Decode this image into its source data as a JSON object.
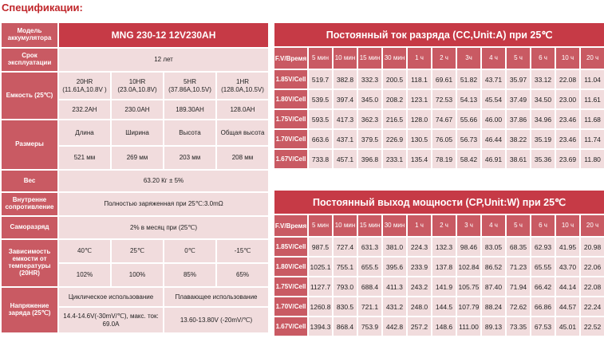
{
  "page_title": "Спецификации:",
  "spec": {
    "model_label": "Модель аккумулятора",
    "model_value": "MNG 230-12 12V230AH",
    "life_label": "Срок эксплуатации",
    "life_value": "12 лет",
    "capacity_label": "Емкость (25℃)",
    "capacity_headers": [
      "20HR (11.61A,10.8V )",
      "10HR (23.0A,10.8V)",
      "5HR (37.86A,10.5V)",
      "1HR (128.0A,10.5V)"
    ],
    "capacity_values": [
      "232.2AH",
      "230.0AH",
      "189.30AH",
      "128.0AH"
    ],
    "size_label": "Размеры",
    "size_headers": [
      "Длина",
      "Ширина",
      "Высота",
      "Общая высота"
    ],
    "size_values": [
      "521 мм",
      "269 мм",
      "203 мм",
      "208 мм"
    ],
    "weight_label": "Вес",
    "weight_value": "63.20 Кг ± 5%",
    "resistance_label": "Внутренне сопротивление",
    "resistance_value": "Полностью заряженная при 25℃:3.0mΩ",
    "selfdischarge_label": "Саморазряд",
    "selfdischarge_value": "2% в месяц при (25℃)",
    "temp_label": "Зависимость емкости от температуры (20HR)",
    "temp_headers": [
      "40℃",
      "25℃",
      "0℃",
      "-15℃"
    ],
    "temp_values": [
      "102%",
      "100%",
      "85%",
      "65%"
    ],
    "voltage_label": "Напряжение заряда (25℃)",
    "voltage_cyclic_label": "Циклическое использование",
    "voltage_cyclic_value": "14.4-14.6V(-30mV/℃), макс. ток: 69.0A",
    "voltage_float_label": "Плавающее использование",
    "voltage_float_value": "13.60-13.80V (-20mV/℃)"
  },
  "cc_table": {
    "title": "Постоянный ток разряда (CC,Unit:A) при 25℃",
    "corner": "F.V/Время",
    "columns": [
      "5 мин",
      "10 мин",
      "15 мин",
      "30 мин",
      "1 ч",
      "2 ч",
      "3ч",
      "4 ч",
      "5 ч",
      "6 ч",
      "10 ч",
      "20 ч"
    ],
    "rows": [
      {
        "label": "1.85V/Cell",
        "values": [
          "519.7",
          "382.8",
          "332.3",
          "200.5",
          "118.1",
          "69.61",
          "51.82",
          "43.71",
          "35.97",
          "33.12",
          "22.08",
          "11.04"
        ]
      },
      {
        "label": "1.80V/Cell",
        "values": [
          "539.5",
          "397.4",
          "345.0",
          "208.2",
          "123.1",
          "72.53",
          "54.13",
          "45.54",
          "37.49",
          "34.50",
          "23.00",
          "11.61"
        ]
      },
      {
        "label": "1.75V/Cell",
        "values": [
          "593.5",
          "417.3",
          "362.3",
          "216.5",
          "128.0",
          "74.67",
          "55.66",
          "46.00",
          "37.86",
          "34.96",
          "23.46",
          "11.68"
        ]
      },
      {
        "label": "1.70V/Cell",
        "values": [
          "663.6",
          "437.1",
          "379.5",
          "226.9",
          "130.5",
          "76.05",
          "56.73",
          "46.44",
          "38.22",
          "35.19",
          "23.46",
          "11.74"
        ]
      },
      {
        "label": "1.67V/Cell",
        "values": [
          "733.8",
          "457.1",
          "396.8",
          "233.1",
          "135.4",
          "78.19",
          "58.42",
          "46.91",
          "38.61",
          "35.36",
          "23.69",
          "11.80"
        ]
      }
    ]
  },
  "cp_table": {
    "title": "Постоянный выход мощности (CP,Unit:W) при 25℃",
    "corner": "F.V/Время",
    "columns": [
      "5 мин",
      "10 мин",
      "15 мин",
      "30 мин",
      "1 ч",
      "2 ч",
      "3 ч",
      "4 ч",
      "5 ч",
      "6 ч",
      "10 ч",
      "20 ч"
    ],
    "rows": [
      {
        "label": "1.85V/Cell",
        "values": [
          "987.5",
          "727.4",
          "631.3",
          "381.0",
          "224.3",
          "132.3",
          "98.46",
          "83.05",
          "68.35",
          "62.93",
          "41.95",
          "20.98"
        ]
      },
      {
        "label": "1.80V/Cell",
        "values": [
          "1025.1",
          "755.1",
          "655.5",
          "395.6",
          "233.9",
          "137.8",
          "102.84",
          "86.52",
          "71.23",
          "65.55",
          "43.70",
          "22.06"
        ]
      },
      {
        "label": "1.75V/Cell",
        "values": [
          "1127.7",
          "793.0",
          "688.4",
          "411.3",
          "243.2",
          "141.9",
          "105.75",
          "87.40",
          "71.94",
          "66.42",
          "44.14",
          "22.08"
        ]
      },
      {
        "label": "1.70V/Cell",
        "values": [
          "1260.8",
          "830.5",
          "721.1",
          "431.2",
          "248.0",
          "144.5",
          "107.79",
          "88.24",
          "72.62",
          "66.86",
          "44.57",
          "22.24"
        ]
      },
      {
        "label": "1.67V/Cell",
        "values": [
          "1394.3",
          "868.4",
          "753.9",
          "442.8",
          "257.2",
          "148.6",
          "111.00",
          "89.13",
          "73.35",
          "67.53",
          "45.01",
          "22.52"
        ]
      }
    ]
  }
}
